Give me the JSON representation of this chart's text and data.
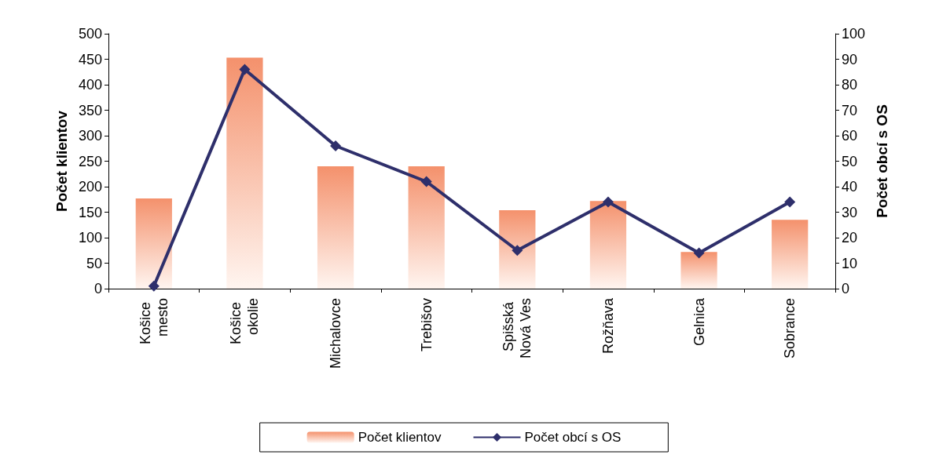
{
  "chart_data": {
    "type": "bar",
    "categories": [
      "Košice mesto",
      "Košice okolie",
      "Michalovce",
      "Trebišov",
      "Spišská Nová Ves",
      "Rožňava",
      "Gelnica",
      "Sobrance"
    ],
    "series": [
      {
        "name": "Počet klientov",
        "color": "#f4916c",
        "values": [
          177,
          453,
          240,
          240,
          154,
          172,
          72,
          135
        ]
      },
      {
        "name": "Počet obcí s OS",
        "type": "line",
        "axis": "y2",
        "color": "#2e2f6b",
        "values": [
          1,
          86,
          56,
          42,
          15,
          34,
          14,
          34
        ]
      }
    ],
    "ylabel": "Počet klientov",
    "y2label": "Počet obcí s OS",
    "ylim": [
      0,
      500
    ],
    "yticks": [
      0,
      50,
      100,
      150,
      200,
      250,
      300,
      350,
      400,
      450,
      500
    ],
    "y2lim": [
      0,
      100
    ],
    "y2ticks": [
      0,
      10,
      20,
      30,
      40,
      50,
      60,
      70,
      80,
      90,
      100
    ],
    "grid": false,
    "legend": "bottom",
    "marker": "diamond",
    "line_style": "solid"
  }
}
